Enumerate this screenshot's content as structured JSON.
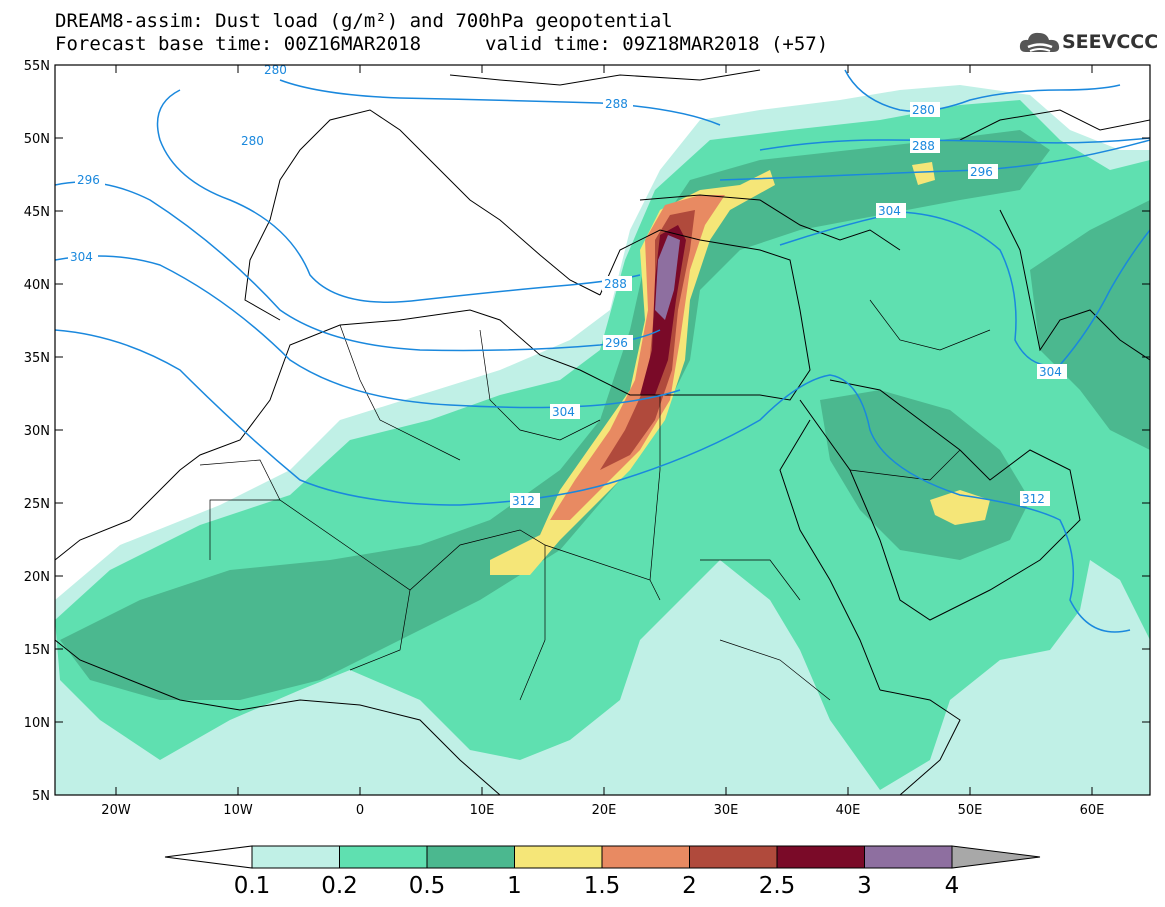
{
  "header": {
    "line1": "DREAM8-assim: Dust load (g/m²) and 700hPa geopotential",
    "line2_base": "Forecast base time: 00Z16MAR2018",
    "line2_valid": "valid time: 09Z18MAR2018 (+57)"
  },
  "logo": {
    "text": "SEEVCCC",
    "icon": "cloud-icon"
  },
  "map": {
    "lon_labels": [
      "20W",
      "10W",
      "0",
      "10E",
      "20E",
      "30E",
      "40E",
      "50E",
      "60E"
    ],
    "lat_labels": [
      "55N",
      "50N",
      "45N",
      "40N",
      "35N",
      "30N",
      "25N",
      "20N",
      "15N",
      "10N",
      "5N"
    ],
    "contour_labels": [
      "280",
      "280",
      "280",
      "288",
      "288",
      "288",
      "296",
      "296",
      "296",
      "304",
      "304",
      "304",
      "312",
      "312"
    ],
    "colors": {
      "coast": "#000000",
      "geopotential": "#1a88dd"
    }
  },
  "colorbar": {
    "labels": [
      "0.1",
      "0.2",
      "0.5",
      "1",
      "1.5",
      "2",
      "2.5",
      "3",
      "4"
    ],
    "colors": [
      "#c0f0e6",
      "#5fe0b0",
      "#4bb88f",
      "#f5e678",
      "#e88a62",
      "#b04a3c",
      "#7a0a28",
      "#8e6fa0",
      "#a8a8a8"
    ]
  }
}
